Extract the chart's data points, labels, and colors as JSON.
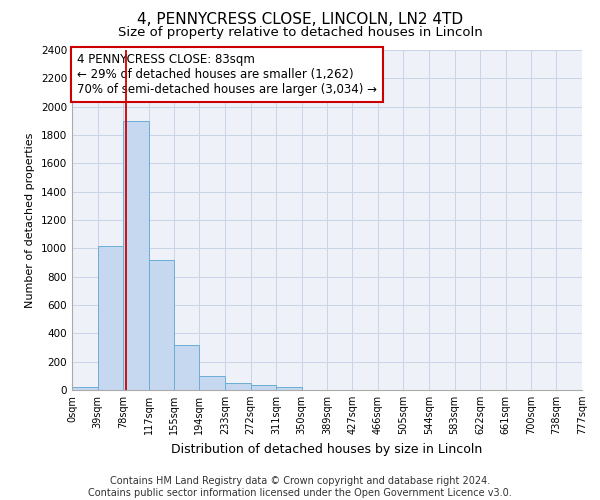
{
  "title": "4, PENNYCRESS CLOSE, LINCOLN, LN2 4TD",
  "subtitle": "Size of property relative to detached houses in Lincoln",
  "xlabel": "Distribution of detached houses by size in Lincoln",
  "ylabel": "Number of detached properties",
  "bin_edges": [
    0,
    39,
    78,
    117,
    155,
    194,
    233,
    272,
    311,
    350,
    389,
    427,
    466,
    505,
    544,
    583,
    622,
    661,
    700,
    738,
    777
  ],
  "bar_heights": [
    20,
    1020,
    1900,
    920,
    320,
    100,
    50,
    35,
    20,
    0,
    0,
    0,
    0,
    0,
    0,
    0,
    0,
    0,
    0,
    0
  ],
  "bar_color": "#c5d8ef",
  "bar_edge_color": "#6baed6",
  "red_line_x": 83,
  "ylim": [
    0,
    2400
  ],
  "yticks": [
    0,
    200,
    400,
    600,
    800,
    1000,
    1200,
    1400,
    1600,
    1800,
    2000,
    2200,
    2400
  ],
  "xtick_labels": [
    "0sqm",
    "39sqm",
    "78sqm",
    "117sqm",
    "155sqm",
    "194sqm",
    "233sqm",
    "272sqm",
    "311sqm",
    "350sqm",
    "389sqm",
    "427sqm",
    "466sqm",
    "505sqm",
    "544sqm",
    "583sqm",
    "622sqm",
    "661sqm",
    "700sqm",
    "738sqm",
    "777sqm"
  ],
  "annotation_text": "4 PENNYCRESS CLOSE: 83sqm\n← 29% of detached houses are smaller (1,262)\n70% of semi-detached houses are larger (3,034) →",
  "annotation_box_color": "#ffffff",
  "annotation_box_edge": "#cc0000",
  "footer_text": "Contains HM Land Registry data © Crown copyright and database right 2024.\nContains public sector information licensed under the Open Government Licence v3.0.",
  "title_fontsize": 11,
  "subtitle_fontsize": 9.5,
  "xlabel_fontsize": 9,
  "ylabel_fontsize": 8,
  "annotation_fontsize": 8.5,
  "footer_fontsize": 7,
  "grid_color": "#c8d4e8",
  "background_color": "#eef2f8"
}
